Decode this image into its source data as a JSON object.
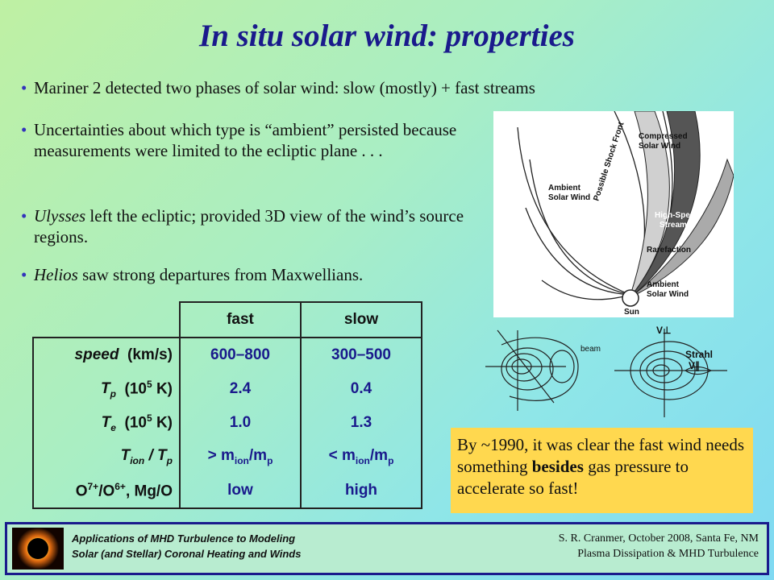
{
  "title": "In situ solar wind: properties",
  "bullets": [
    "Mariner 2 detected two phases of solar wind:  slow (mostly) + fast streams",
    "Uncertainties about which type is “ambient” persisted because measurements were limited to the ecliptic plane . . .",
    {
      "em": "Ulysses",
      "rest": " left the ecliptic; provided 3D view of the wind’s source regions."
    },
    {
      "em": "Helios",
      "rest": " saw strong departures from Maxwellians."
    }
  ],
  "diagram_labels": {
    "compressed": [
      "Compressed",
      "Solar Wind"
    ],
    "shock": "Possible Shock Front",
    "ambient_top": [
      "Ambient",
      "Solar Wind"
    ],
    "highspeed": [
      "High-Speed",
      "Stream"
    ],
    "rarefaction": "Rarefaction",
    "ambient_bottom": [
      "Ambient",
      "Solar Wind"
    ],
    "sun": "Sun"
  },
  "vdf_labels": {
    "beam": "beam",
    "vperp": "V⊥",
    "strahl": "Strahl",
    "vpar": "V∥"
  },
  "table": {
    "headers": [
      "fast",
      "slow"
    ],
    "rows": [
      {
        "label": "speed  (km/s)",
        "fast": "600–800",
        "slow": "300–500"
      },
      {
        "label": "T_p  (10^5 K)",
        "fast": "2.4",
        "slow": "0.4"
      },
      {
        "label": "T_e  (10^5 K)",
        "fast": "1.0",
        "slow": "1.3"
      },
      {
        "label": "T_ion / T_p",
        "fast": "> m_ion/m_p",
        "slow": "< m_ion/m_p"
      },
      {
        "label": "O^7+/O^6+, Mg/O",
        "fast": "low",
        "slow": "high"
      }
    ]
  },
  "callout": {
    "before": "By ~1990, it was clear the fast wind needs something ",
    "bold": "besides",
    "after": " gas pressure to accelerate so fast!"
  },
  "footer": {
    "left1": "Applications of MHD Turbulence to Modeling",
    "left2": "Solar (and Stellar) Coronal Heating and Winds",
    "right1": "S. R. Cranmer,  October 2008, Santa Fe, NM",
    "right2": "Plasma Dissipation & MHD Turbulence"
  }
}
